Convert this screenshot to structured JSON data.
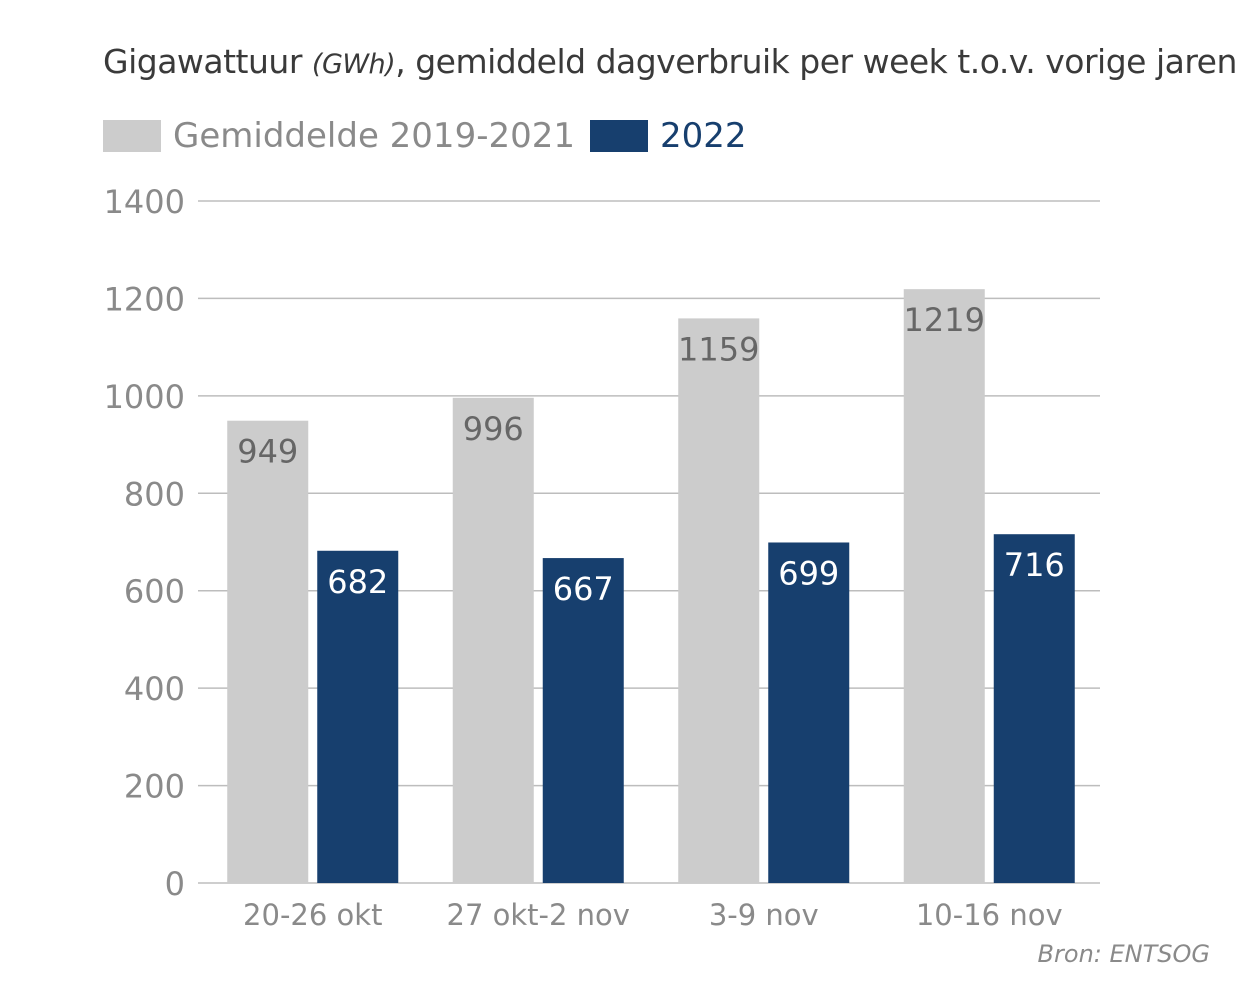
{
  "title": {
    "main": "Gigawattuur",
    "unit": "(GWh)",
    "rest": ", gemiddeld dagverbruik per week t.o.v. vorige jaren"
  },
  "source": "Bron: ENTSOG",
  "colors": {
    "gemiddelde": "#cccccc",
    "2022": "#173f6e",
    "gemiddelde_label": "#666666",
    "2022_label": "#ffffff",
    "axis_text": "#8a8a8a",
    "grid": "#bdbdbd"
  },
  "chart_data": {
    "type": "bar",
    "categories": [
      "20-26 okt",
      "27 okt-2 nov",
      "3-9 nov",
      "10-16 nov"
    ],
    "series": [
      {
        "name": "Gemiddelde 2019-2021",
        "values": [
          949,
          996,
          1159,
          1219
        ]
      },
      {
        "name": "2022",
        "values": [
          682,
          667,
          699,
          716
        ]
      }
    ],
    "data_labels": [
      [
        "949",
        "996",
        "1159",
        "1219"
      ],
      [
        "682",
        "667",
        "699",
        "716"
      ]
    ],
    "ylim": [
      0,
      1400
    ],
    "yticks": [
      "0",
      "200",
      "400",
      "600",
      "800",
      "1000",
      "1200",
      "1400"
    ],
    "grid": true,
    "legend_position": "top-left",
    "xlabel": "",
    "ylabel": ""
  }
}
